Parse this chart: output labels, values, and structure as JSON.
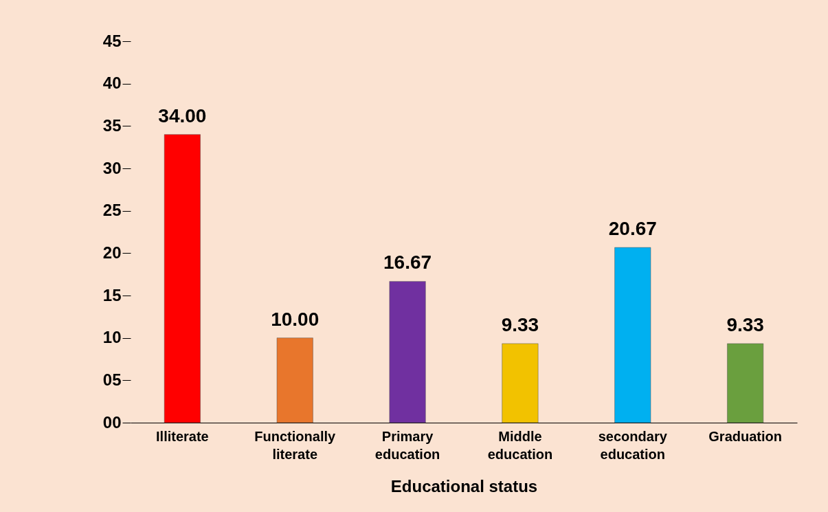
{
  "chart_data": {
    "type": "bar",
    "xlabel": "Educational status",
    "categories": [
      "Illiterate",
      "Functionally literate",
      "Primary education",
      "Middle education",
      "secondary education",
      "Graduation"
    ],
    "values": [
      34.0,
      10.0,
      16.67,
      9.33,
      20.67,
      9.33
    ],
    "value_labels": [
      "34.00",
      "10.00",
      "16.67",
      "9.33",
      "20.67",
      "9.33"
    ],
    "colors": [
      "#ff0000",
      "#e8762c",
      "#7030a0",
      "#f2c200",
      "#00b0f0",
      "#6a9f3e"
    ],
    "ylim": [
      0,
      45
    ],
    "yticks": [
      {
        "value": 0,
        "label": "00"
      },
      {
        "value": 5,
        "label": "05"
      },
      10,
      15,
      20,
      25,
      30,
      35,
      40,
      45
    ]
  }
}
